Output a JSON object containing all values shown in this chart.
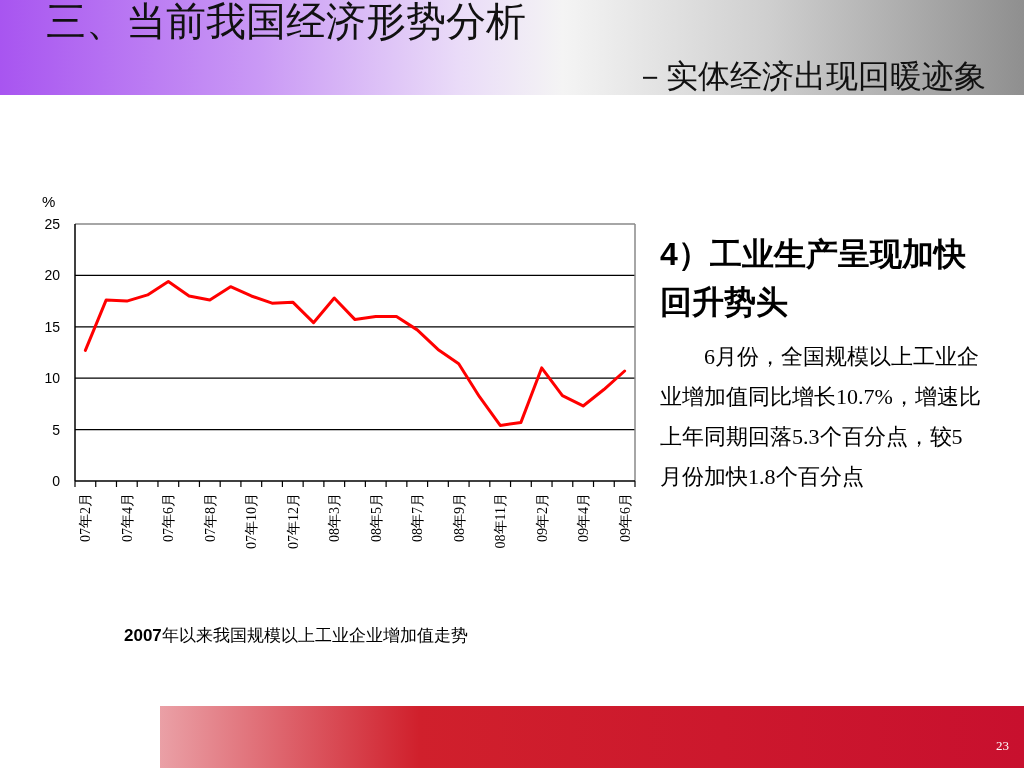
{
  "chart_data": {
    "type": "line",
    "title": "三、当前我国经济形势分析",
    "subtitle": "－实体经济出现回暖迹象",
    "ylabel": "%",
    "annotations": [
      "2007年以来我国规模以上工业企业增加值走势",
      "4）工业生产呈现加快回升势头",
      "6月份，全国规模以上工业企业增加值同比增长10.7%，增速比上年同期回落5.3个百分点，较5月份加快1.8个百分点",
      "23"
    ],
    "categories": [
      "07年2月",
      null,
      "07年4月",
      null,
      "07年6月",
      null,
      "07年8月",
      null,
      "07年10月",
      null,
      "07年12月",
      null,
      "08年3月",
      null,
      "08年5月",
      null,
      "08年7月",
      null,
      "08年9月",
      null,
      "08年11月",
      null,
      "09年2月",
      null,
      "09年4月",
      null,
      "09年6月"
    ],
    "series": [
      {
        "color": "#ff0000",
        "values": [
          12.7,
          17.6,
          17.5,
          18.1,
          19.4,
          18.0,
          17.6,
          18.9,
          18.0,
          17.3,
          17.4,
          15.4,
          17.8,
          15.7,
          16.0,
          16.0,
          14.7,
          12.8,
          11.4,
          8.2,
          5.4,
          5.7,
          11.0,
          8.3,
          7.3,
          8.9,
          10.7
        ]
      }
    ],
    "ylim": [
      0,
      25
    ],
    "yticks": [
      0,
      5,
      10,
      15,
      20,
      25
    ],
    "grid": "y",
    "marker": "none"
  }
}
